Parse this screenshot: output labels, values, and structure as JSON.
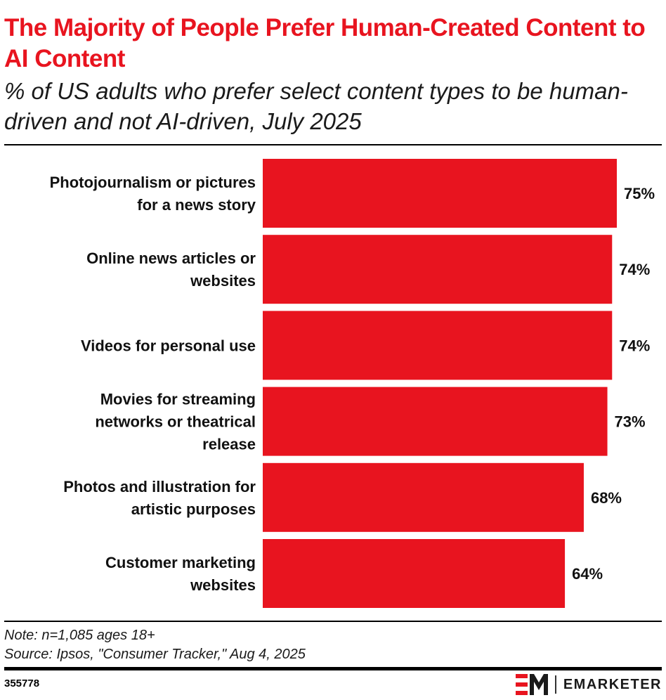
{
  "title": "The Majority of People Prefer Human-Created Content to AI Content",
  "subtitle": "% of US adults who prefer select content types to be human-driven and not AI-driven, July 2025",
  "note": "Note: n=1,085 ages 18+",
  "source": "Source: Ipsos, \"Consumer Tracker,\" Aug 4, 2025",
  "chart_id": "355778",
  "brand": {
    "name": "EMARKETER",
    "logo_text": "EM"
  },
  "colors": {
    "bar": "#e8141f",
    "title": "#e8141f",
    "text": "#111111"
  },
  "chart_data": {
    "type": "bar",
    "orientation": "horizontal",
    "categories": [
      [
        "Photojournalism or pictures",
        "for a news story"
      ],
      [
        "Online news articles or",
        "websites"
      ],
      [
        "Videos for personal use"
      ],
      [
        "Movies for streaming",
        "networks or theatrical",
        "release"
      ],
      [
        "Photos and illustration for",
        "artistic purposes"
      ],
      [
        "Customer marketing",
        "websites"
      ]
    ],
    "values": [
      75,
      74,
      74,
      73,
      68,
      64
    ],
    "value_labels": [
      "75%",
      "74%",
      "74%",
      "73%",
      "68%",
      "64%"
    ],
    "unit": "%",
    "xlim": [
      0,
      75
    ],
    "grid": false,
    "legend": "none"
  }
}
